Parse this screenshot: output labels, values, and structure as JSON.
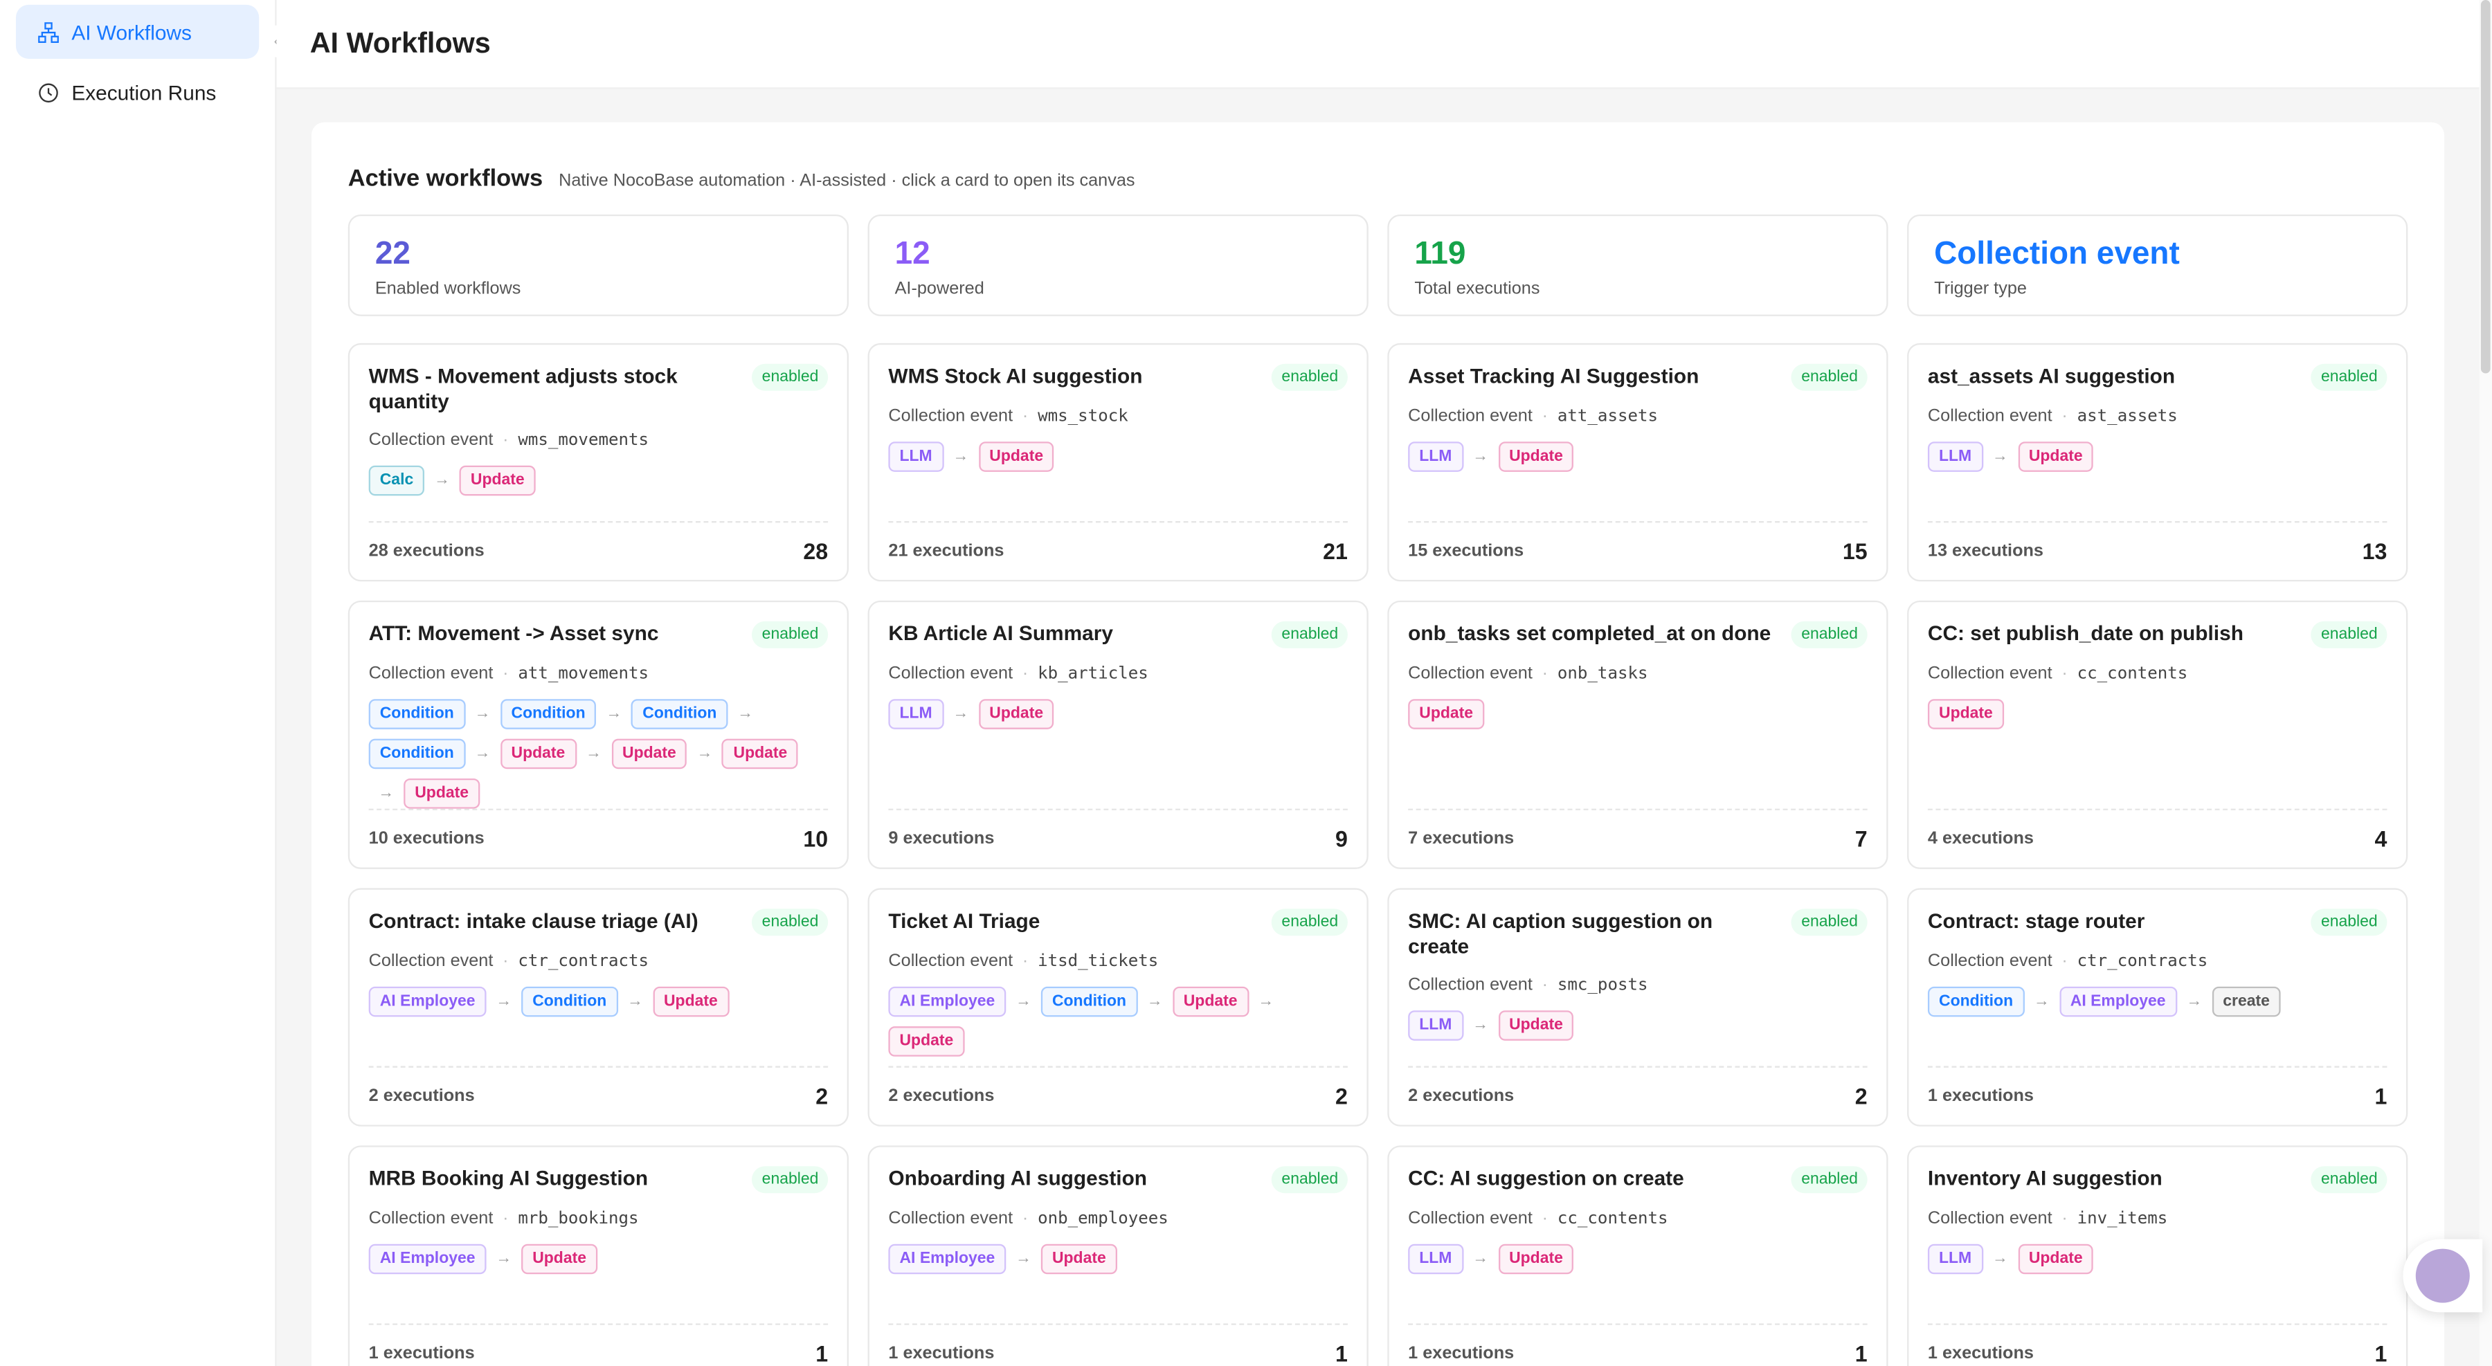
{
  "sidebar": {
    "items": [
      "AI Workflows",
      "Execution Runs"
    ]
  },
  "header": {
    "title": "AI Workflows"
  },
  "section": {
    "title": "Active workflows",
    "subtitle": "Native NocoBase automation · AI-assisted · click a card to open its canvas"
  },
  "stats": [
    {
      "value": "22",
      "label": "Enabled workflows",
      "color": "#5b5bd6"
    },
    {
      "value": "12",
      "label": "AI-powered",
      "color": "#8b5cf6"
    },
    {
      "value": "119",
      "label": "Total executions",
      "color": "#16a34a"
    },
    {
      "value": "Collection event",
      "label": "Trigger type",
      "color": "#1677ff"
    }
  ],
  "workflows": [
    {
      "name": "WMS - Movement adjusts stock quantity",
      "status": "enabled",
      "trigger": "Collection event",
      "collection": "wms_movements",
      "nodes": [
        {
          "label": "Calc",
          "color": "#0891b2"
        },
        {
          "label": "Update",
          "color": "#db2777"
        }
      ],
      "executions_label": "28 executions",
      "count": "28"
    },
    {
      "name": "WMS Stock AI suggestion",
      "status": "enabled",
      "trigger": "Collection event",
      "collection": "wms_stock",
      "nodes": [
        {
          "label": "LLM",
          "color": "#8b5cf6"
        },
        {
          "label": "Update",
          "color": "#db2777"
        }
      ],
      "executions_label": "21 executions",
      "count": "21"
    },
    {
      "name": "Asset Tracking AI Suggestion",
      "status": "enabled",
      "trigger": "Collection event",
      "collection": "att_assets",
      "nodes": [
        {
          "label": "LLM",
          "color": "#8b5cf6"
        },
        {
          "label": "Update",
          "color": "#db2777"
        }
      ],
      "executions_label": "15 executions",
      "count": "15"
    },
    {
      "name": "ast_assets AI suggestion",
      "status": "enabled",
      "trigger": "Collection event",
      "collection": "ast_assets",
      "nodes": [
        {
          "label": "LLM",
          "color": "#8b5cf6"
        },
        {
          "label": "Update",
          "color": "#db2777"
        }
      ],
      "executions_label": "13 executions",
      "count": "13"
    },
    {
      "name": "ATT: Movement -> Asset sync",
      "status": "enabled",
      "trigger": "Collection event",
      "collection": "att_movements",
      "nodes": [
        {
          "label": "Condition",
          "color": "#1677ff"
        },
        {
          "label": "Condition",
          "color": "#1677ff"
        },
        {
          "label": "Condition",
          "color": "#1677ff"
        },
        {
          "label": "Condition",
          "color": "#1677ff"
        },
        {
          "label": "Update",
          "color": "#db2777"
        },
        {
          "label": "Update",
          "color": "#db2777"
        },
        {
          "label": "Update",
          "color": "#db2777"
        },
        {
          "label": "Update",
          "color": "#db2777"
        }
      ],
      "executions_label": "10 executions",
      "count": "10"
    },
    {
      "name": "KB Article AI Summary",
      "status": "enabled",
      "trigger": "Collection event",
      "collection": "kb_articles",
      "nodes": [
        {
          "label": "LLM",
          "color": "#8b5cf6"
        },
        {
          "label": "Update",
          "color": "#db2777"
        }
      ],
      "executions_label": "9 executions",
      "count": "9"
    },
    {
      "name": "onb_tasks set completed_at on done",
      "status": "enabled",
      "trigger": "Collection event",
      "collection": "onb_tasks",
      "nodes": [
        {
          "label": "Update",
          "color": "#db2777"
        }
      ],
      "executions_label": "7 executions",
      "count": "7"
    },
    {
      "name": "CC: set publish_date on publish",
      "status": "enabled",
      "trigger": "Collection event",
      "collection": "cc_contents",
      "nodes": [
        {
          "label": "Update",
          "color": "#db2777"
        }
      ],
      "executions_label": "4 executions",
      "count": "4"
    },
    {
      "name": "Contract: intake clause triage (AI)",
      "status": "enabled",
      "trigger": "Collection event",
      "collection": "ctr_contracts",
      "nodes": [
        {
          "label": "AI Employee",
          "color": "#8b5cf6"
        },
        {
          "label": "Condition",
          "color": "#1677ff"
        },
        {
          "label": "Update",
          "color": "#db2777"
        }
      ],
      "executions_label": "2 executions",
      "count": "2"
    },
    {
      "name": "Ticket AI Triage",
      "status": "enabled",
      "trigger": "Collection event",
      "collection": "itsd_tickets",
      "nodes": [
        {
          "label": "AI Employee",
          "color": "#8b5cf6"
        },
        {
          "label": "Condition",
          "color": "#1677ff"
        },
        {
          "label": "Update",
          "color": "#db2777"
        },
        {
          "label": "Update",
          "color": "#db2777"
        }
      ],
      "executions_label": "2 executions",
      "count": "2"
    },
    {
      "name": "SMC: AI caption suggestion on create",
      "status": "enabled",
      "trigger": "Collection event",
      "collection": "smc_posts",
      "nodes": [
        {
          "label": "LLM",
          "color": "#8b5cf6"
        },
        {
          "label": "Update",
          "color": "#db2777"
        }
      ],
      "executions_label": "2 executions",
      "count": "2"
    },
    {
      "name": "Contract: stage router",
      "status": "enabled",
      "trigger": "Collection event",
      "collection": "ctr_contracts",
      "nodes": [
        {
          "label": "Condition",
          "color": "#1677ff"
        },
        {
          "label": "AI Employee",
          "color": "#8b5cf6"
        },
        {
          "label": "create",
          "color": "#555555"
        }
      ],
      "executions_label": "1 executions",
      "count": "1"
    },
    {
      "name": "MRB Booking AI Suggestion",
      "status": "enabled",
      "trigger": "Collection event",
      "collection": "mrb_bookings",
      "nodes": [
        {
          "label": "AI Employee",
          "color": "#8b5cf6"
        },
        {
          "label": "Update",
          "color": "#db2777"
        }
      ],
      "executions_label": "1 executions",
      "count": "1"
    },
    {
      "name": "Onboarding AI suggestion",
      "status": "enabled",
      "trigger": "Collection event",
      "collection": "onb_employees",
      "nodes": [
        {
          "label": "AI Employee",
          "color": "#8b5cf6"
        },
        {
          "label": "Update",
          "color": "#db2777"
        }
      ],
      "executions_label": "1 executions",
      "count": "1"
    },
    {
      "name": "CC: AI suggestion on create",
      "status": "enabled",
      "trigger": "Collection event",
      "collection": "cc_contents",
      "nodes": [
        {
          "label": "LLM",
          "color": "#8b5cf6"
        },
        {
          "label": "Update",
          "color": "#db2777"
        }
      ],
      "executions_label": "1 executions",
      "count": "1"
    },
    {
      "name": "Inventory AI suggestion",
      "status": "enabled",
      "trigger": "Collection event",
      "collection": "inv_items",
      "nodes": [
        {
          "label": "LLM",
          "color": "#8b5cf6"
        },
        {
          "label": "Update",
          "color": "#db2777"
        }
      ],
      "executions_label": "1 executions",
      "count": "1"
    }
  ]
}
